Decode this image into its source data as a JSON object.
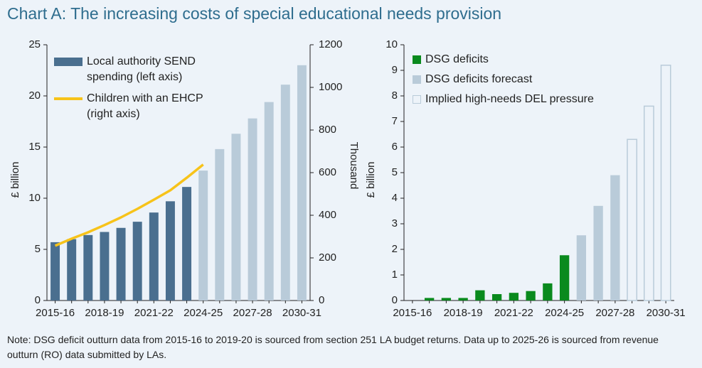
{
  "title": "Chart A: The increasing costs of special educational needs provision",
  "note": "Note: DSG deficit outturn data from 2015-16 to 2019-20 is sourced from section 251 LA budget returns. Data up to 2025-26 is sourced from revenue outturn (RO) data submitted by LAs.",
  "chart_data": [
    {
      "type": "bar",
      "categories": [
        "2015-16",
        null,
        null,
        "2018-19",
        null,
        null,
        "2021-22",
        null,
        null,
        "2024-25",
        null,
        null,
        "2027-28",
        null,
        null,
        "2030-31"
      ],
      "y_label": "£ billion",
      "y2_label": "Thousand",
      "ylim": [
        0,
        25
      ],
      "yticks": [
        0,
        5,
        10,
        15,
        20,
        25
      ],
      "y2lim": [
        0,
        1200
      ],
      "y2ticks": [
        0,
        200,
        400,
        600,
        800,
        1000,
        1200
      ],
      "series": [
        {
          "name": "Local authority SEND spending (left axis)",
          "color": "#4a6f8f",
          "colors": [
            "#4a6f8f",
            "#4a6f8f",
            "#4a6f8f",
            "#4a6f8f",
            "#4a6f8f",
            "#4a6f8f",
            "#4a6f8f",
            "#4a6f8f",
            "#4a6f8f",
            "#b9cbd9",
            "#b9cbd9",
            "#b9cbd9",
            "#b9cbd9",
            "#b9cbd9",
            "#b9cbd9",
            "#b9cbd9"
          ],
          "values": [
            5.7,
            6.0,
            6.4,
            6.7,
            7.1,
            7.7,
            8.6,
            9.7,
            11.1,
            12.7,
            14.8,
            16.3,
            17.8,
            19.4,
            21.1,
            23.0
          ]
        },
        {
          "name": "Children with an EHCP (right axis)",
          "type": "line",
          "axis": "y2",
          "color": "#f7c31a",
          "values": [
            257,
            290,
            320,
            354,
            390,
            430,
            473,
            517,
            576,
            638,
            null,
            null,
            null,
            null,
            null,
            null
          ]
        }
      ]
    },
    {
      "type": "bar",
      "categories": [
        "2015-16",
        null,
        null,
        "2018-19",
        null,
        null,
        "2021-22",
        null,
        null,
        "2024-25",
        null,
        null,
        "2027-28",
        null,
        null,
        "2030-31"
      ],
      "y_label": "£ billion",
      "ylim": [
        0,
        10
      ],
      "yticks": [
        0,
        1,
        2,
        3,
        4,
        5,
        6,
        7,
        8,
        9,
        10
      ],
      "series": [
        {
          "name": "DSG deficits",
          "color": "#0a8a1e",
          "values": [
            null,
            0.1,
            0.1,
            0.1,
            0.4,
            0.25,
            0.3,
            0.37,
            0.67,
            1.77,
            null,
            null,
            null,
            null,
            null,
            null
          ]
        },
        {
          "name": "DSG deficits forecast",
          "color": "#b9cbd9",
          "values": [
            null,
            null,
            null,
            null,
            null,
            null,
            null,
            null,
            null,
            null,
            2.55,
            3.7,
            4.9,
            null,
            null,
            null
          ]
        },
        {
          "name": "Implied high-needs DEL pressure",
          "color": "#b9cbd9",
          "outline": true,
          "values": [
            null,
            null,
            null,
            null,
            null,
            null,
            null,
            null,
            null,
            null,
            null,
            null,
            null,
            6.3,
            7.6,
            9.2
          ]
        }
      ]
    }
  ]
}
